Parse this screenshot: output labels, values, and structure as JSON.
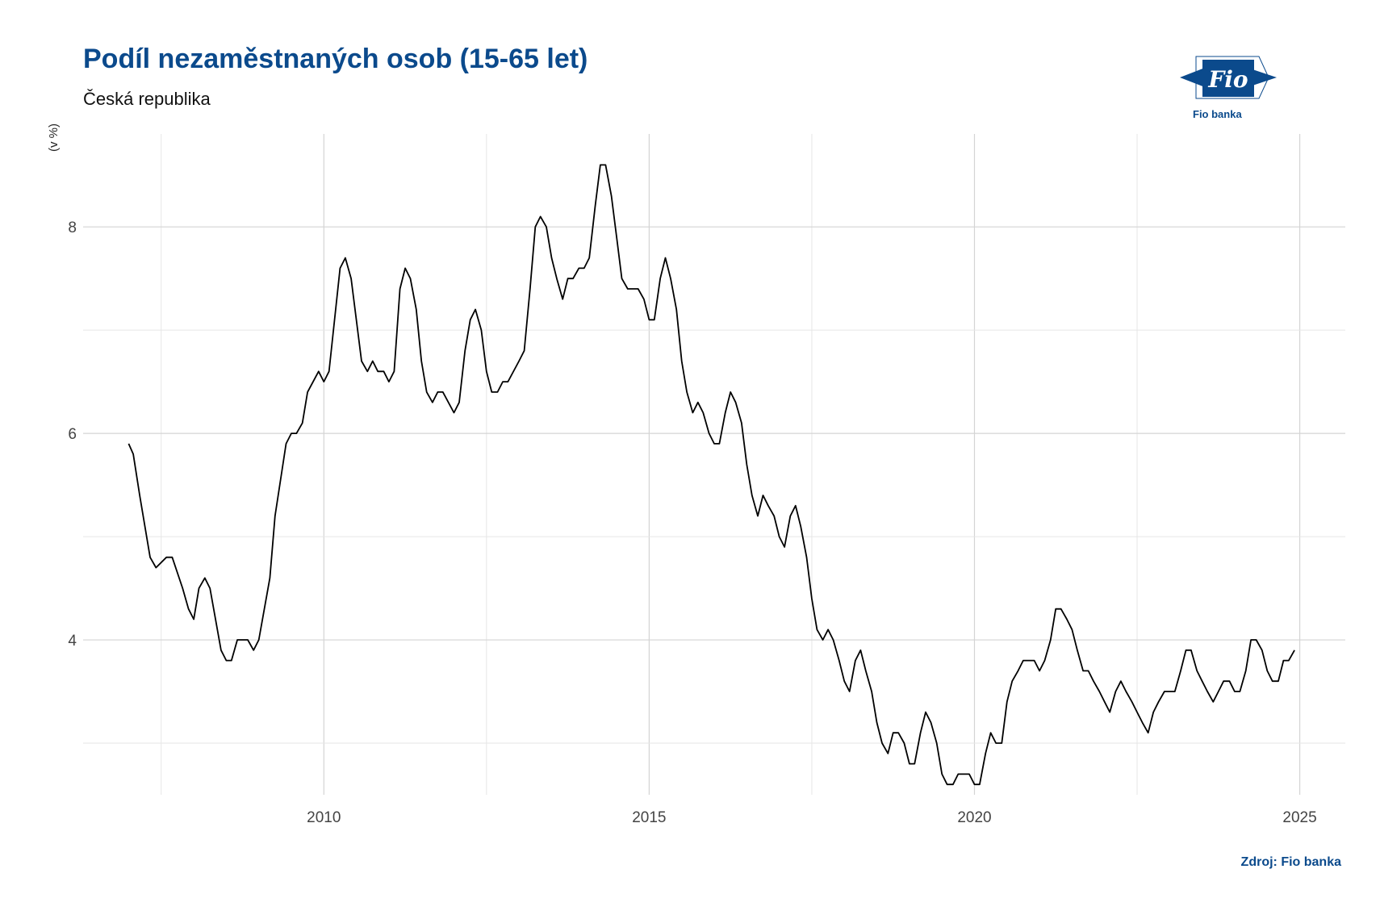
{
  "header": {
    "title": "Podíl nezaměstnaných osob (15-65 let)",
    "subtitle": "Česká republika"
  },
  "footer": {
    "source": "Zdroj: Fio banka"
  },
  "logo": {
    "mark": "Fio",
    "text": "Fio banka",
    "color": "#0b4a8c"
  },
  "chart_data": {
    "type": "line",
    "title": "Podíl nezaměstnaných osob (15-65 let)",
    "subtitle": "Česká republika",
    "ylabel": "(v %)",
    "xlabel": "",
    "xlim": [
      2006.3,
      2025.7
    ],
    "ylim": [
      2.5,
      8.9
    ],
    "x_ticks": [
      2010,
      2015,
      2020,
      2025
    ],
    "y_ticks": [
      4,
      6,
      8
    ],
    "grid": true,
    "line_color": "#000000",
    "series": [
      {
        "values": [
          [
            2007.0,
            5.9
          ],
          [
            2007.07,
            5.8
          ],
          [
            2007.17,
            5.4
          ],
          [
            2007.33,
            4.8
          ],
          [
            2007.42,
            4.7
          ],
          [
            2007.58,
            4.8
          ],
          [
            2007.67,
            4.8
          ],
          [
            2007.83,
            4.5
          ],
          [
            2007.92,
            4.3
          ],
          [
            2008.0,
            4.2
          ],
          [
            2008.08,
            4.5
          ],
          [
            2008.17,
            4.6
          ],
          [
            2008.25,
            4.5
          ],
          [
            2008.42,
            3.9
          ],
          [
            2008.5,
            3.8
          ],
          [
            2008.58,
            3.8
          ],
          [
            2008.67,
            4.0
          ],
          [
            2008.83,
            4.0
          ],
          [
            2008.92,
            3.9
          ],
          [
            2009.0,
            4.0
          ],
          [
            2009.17,
            4.6
          ],
          [
            2009.25,
            5.2
          ],
          [
            2009.42,
            5.9
          ],
          [
            2009.5,
            6.0
          ],
          [
            2009.58,
            6.0
          ],
          [
            2009.67,
            6.1
          ],
          [
            2009.75,
            6.4
          ],
          [
            2009.92,
            6.6
          ],
          [
            2010.0,
            6.5
          ],
          [
            2010.08,
            6.6
          ],
          [
            2010.25,
            7.6
          ],
          [
            2010.33,
            7.7
          ],
          [
            2010.42,
            7.5
          ],
          [
            2010.58,
            6.7
          ],
          [
            2010.67,
            6.6
          ],
          [
            2010.75,
            6.7
          ],
          [
            2010.83,
            6.6
          ],
          [
            2010.92,
            6.6
          ],
          [
            2011.0,
            6.5
          ],
          [
            2011.08,
            6.6
          ],
          [
            2011.17,
            7.4
          ],
          [
            2011.25,
            7.6
          ],
          [
            2011.33,
            7.5
          ],
          [
            2011.42,
            7.2
          ],
          [
            2011.5,
            6.7
          ],
          [
            2011.58,
            6.4
          ],
          [
            2011.67,
            6.3
          ],
          [
            2011.75,
            6.4
          ],
          [
            2011.83,
            6.4
          ],
          [
            2012.0,
            6.2
          ],
          [
            2012.08,
            6.3
          ],
          [
            2012.17,
            6.8
          ],
          [
            2012.25,
            7.1
          ],
          [
            2012.33,
            7.2
          ],
          [
            2012.42,
            7.0
          ],
          [
            2012.5,
            6.6
          ],
          [
            2012.58,
            6.4
          ],
          [
            2012.67,
            6.4
          ],
          [
            2012.75,
            6.5
          ],
          [
            2012.83,
            6.5
          ],
          [
            2013.0,
            6.7
          ],
          [
            2013.08,
            6.8
          ],
          [
            2013.17,
            7.4
          ],
          [
            2013.25,
            8.0
          ],
          [
            2013.33,
            8.1
          ],
          [
            2013.42,
            8.0
          ],
          [
            2013.5,
            7.7
          ],
          [
            2013.58,
            7.5
          ],
          [
            2013.67,
            7.3
          ],
          [
            2013.75,
            7.5
          ],
          [
            2013.83,
            7.5
          ],
          [
            2013.92,
            7.6
          ],
          [
            2014.0,
            7.6
          ],
          [
            2014.08,
            7.7
          ],
          [
            2014.17,
            8.2
          ],
          [
            2014.25,
            8.6
          ],
          [
            2014.33,
            8.6
          ],
          [
            2014.42,
            8.3
          ],
          [
            2014.5,
            7.9
          ],
          [
            2014.58,
            7.5
          ],
          [
            2014.67,
            7.4
          ],
          [
            2014.75,
            7.4
          ],
          [
            2014.83,
            7.4
          ],
          [
            2014.92,
            7.3
          ],
          [
            2015.0,
            7.1
          ],
          [
            2015.08,
            7.1
          ],
          [
            2015.17,
            7.5
          ],
          [
            2015.25,
            7.7
          ],
          [
            2015.33,
            7.5
          ],
          [
            2015.42,
            7.2
          ],
          [
            2015.5,
            6.7
          ],
          [
            2015.58,
            6.4
          ],
          [
            2015.67,
            6.2
          ],
          [
            2015.75,
            6.3
          ],
          [
            2015.83,
            6.2
          ],
          [
            2015.92,
            6.0
          ],
          [
            2016.0,
            5.9
          ],
          [
            2016.08,
            5.9
          ],
          [
            2016.17,
            6.2
          ],
          [
            2016.25,
            6.4
          ],
          [
            2016.33,
            6.3
          ],
          [
            2016.42,
            6.1
          ],
          [
            2016.5,
            5.7
          ],
          [
            2016.58,
            5.4
          ],
          [
            2016.67,
            5.2
          ],
          [
            2016.75,
            5.4
          ],
          [
            2016.83,
            5.3
          ],
          [
            2016.92,
            5.2
          ],
          [
            2017.0,
            5.0
          ],
          [
            2017.08,
            4.9
          ],
          [
            2017.17,
            5.2
          ],
          [
            2017.25,
            5.3
          ],
          [
            2017.33,
            5.1
          ],
          [
            2017.42,
            4.8
          ],
          [
            2017.5,
            4.4
          ],
          [
            2017.58,
            4.1
          ],
          [
            2017.67,
            4.0
          ],
          [
            2017.75,
            4.1
          ],
          [
            2017.83,
            4.0
          ],
          [
            2017.92,
            3.8
          ],
          [
            2018.0,
            3.6
          ],
          [
            2018.08,
            3.5
          ],
          [
            2018.17,
            3.8
          ],
          [
            2018.25,
            3.9
          ],
          [
            2018.33,
            3.7
          ],
          [
            2018.42,
            3.5
          ],
          [
            2018.5,
            3.2
          ],
          [
            2018.58,
            3.0
          ],
          [
            2018.67,
            2.9
          ],
          [
            2018.75,
            3.1
          ],
          [
            2018.83,
            3.1
          ],
          [
            2018.92,
            3.0
          ],
          [
            2019.0,
            2.8
          ],
          [
            2019.08,
            2.8
          ],
          [
            2019.17,
            3.1
          ],
          [
            2019.25,
            3.3
          ],
          [
            2019.33,
            3.2
          ],
          [
            2019.42,
            3.0
          ],
          [
            2019.5,
            2.7
          ],
          [
            2019.58,
            2.6
          ],
          [
            2019.67,
            2.6
          ],
          [
            2019.75,
            2.7
          ],
          [
            2019.83,
            2.7
          ],
          [
            2019.92,
            2.7
          ],
          [
            2020.0,
            2.6
          ],
          [
            2020.08,
            2.6
          ],
          [
            2020.17,
            2.9
          ],
          [
            2020.25,
            3.1
          ],
          [
            2020.33,
            3.0
          ],
          [
            2020.42,
            3.0
          ],
          [
            2020.5,
            3.4
          ],
          [
            2020.58,
            3.6
          ],
          [
            2020.67,
            3.7
          ],
          [
            2020.75,
            3.8
          ],
          [
            2020.83,
            3.8
          ],
          [
            2020.92,
            3.8
          ],
          [
            2021.0,
            3.7
          ],
          [
            2021.08,
            3.8
          ],
          [
            2021.17,
            4.0
          ],
          [
            2021.25,
            4.3
          ],
          [
            2021.33,
            4.3
          ],
          [
            2021.42,
            4.2
          ],
          [
            2021.5,
            4.1
          ],
          [
            2021.58,
            3.9
          ],
          [
            2021.67,
            3.7
          ],
          [
            2021.75,
            3.7
          ],
          [
            2021.83,
            3.6
          ],
          [
            2021.92,
            3.5
          ],
          [
            2022.0,
            3.4
          ],
          [
            2022.08,
            3.3
          ],
          [
            2022.17,
            3.5
          ],
          [
            2022.25,
            3.6
          ],
          [
            2022.33,
            3.5
          ],
          [
            2022.42,
            3.4
          ],
          [
            2022.5,
            3.3
          ],
          [
            2022.58,
            3.2
          ],
          [
            2022.67,
            3.1
          ],
          [
            2022.75,
            3.3
          ],
          [
            2022.83,
            3.4
          ],
          [
            2022.92,
            3.5
          ],
          [
            2023.0,
            3.5
          ],
          [
            2023.08,
            3.5
          ],
          [
            2023.17,
            3.7
          ],
          [
            2023.25,
            3.9
          ],
          [
            2023.33,
            3.9
          ],
          [
            2023.42,
            3.7
          ],
          [
            2023.5,
            3.6
          ],
          [
            2023.58,
            3.5
          ],
          [
            2023.67,
            3.4
          ],
          [
            2023.75,
            3.5
          ],
          [
            2023.83,
            3.6
          ],
          [
            2023.92,
            3.6
          ],
          [
            2024.0,
            3.5
          ],
          [
            2024.08,
            3.5
          ],
          [
            2024.17,
            3.7
          ],
          [
            2024.25,
            4.0
          ],
          [
            2024.33,
            4.0
          ],
          [
            2024.42,
            3.9
          ],
          [
            2024.5,
            3.7
          ],
          [
            2024.58,
            3.6
          ],
          [
            2024.67,
            3.6
          ],
          [
            2024.75,
            3.8
          ],
          [
            2024.83,
            3.8
          ],
          [
            2024.92,
            3.9
          ]
        ]
      }
    ]
  }
}
